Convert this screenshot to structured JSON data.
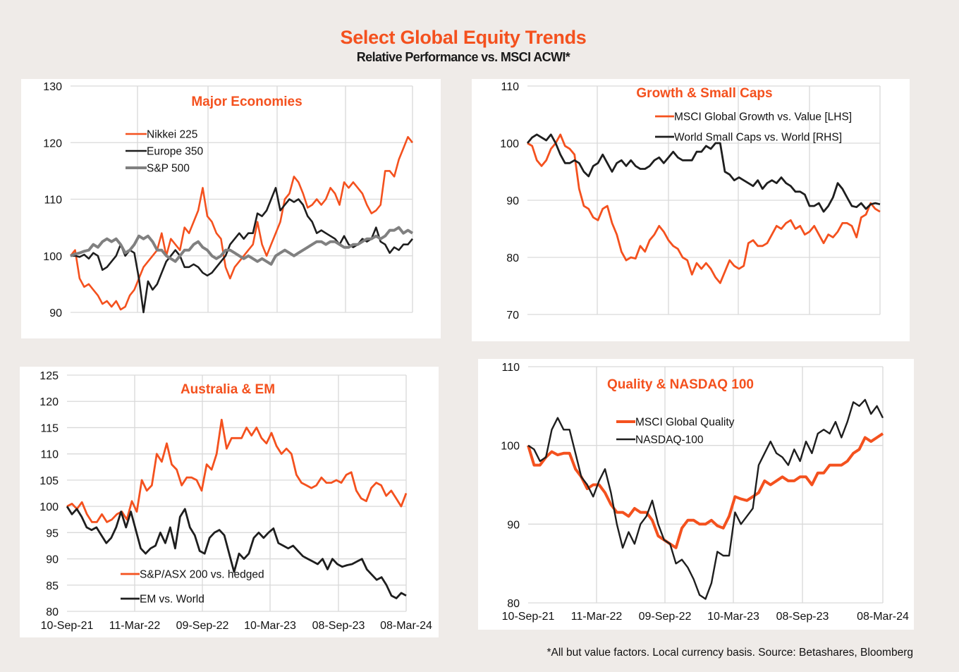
{
  "header": {
    "title": "Select Global Equity Trends",
    "subtitle": "Relative Performance vs. MSCI ACWI*"
  },
  "footnote": "*All but value factors. Local currency basis.  Source: Betashares, Bloomberg",
  "colors": {
    "orange": "#f4511e",
    "black": "#1e1e1e",
    "grey": "#808080",
    "grid": "#d9d9d9"
  },
  "chart_data": [
    {
      "id": "major",
      "type": "line",
      "title": "Major Economies",
      "xlabel": "",
      "ylabel": "",
      "x_range": [
        "10-Sep-21",
        "08-Mar-24"
      ],
      "x_ticks": [],
      "ylim": [
        90,
        130
      ],
      "y_ticks": [
        90,
        100,
        110,
        120,
        130
      ],
      "grid": true,
      "legend": "upper-left",
      "series": [
        {
          "name": "Nikkei 225",
          "color": "#f4511e",
          "values": [
            100,
            101,
            96,
            94.5,
            95,
            94,
            93,
            91.5,
            92,
            91,
            92,
            90.5,
            91,
            93,
            94,
            96,
            98,
            99,
            100,
            101,
            104,
            100,
            103,
            102,
            101,
            105,
            104,
            106,
            108,
            112,
            107,
            106,
            104,
            103,
            98,
            96,
            98,
            99,
            100,
            101,
            102,
            106,
            102,
            100,
            102,
            104,
            106,
            110,
            111,
            114,
            113,
            111,
            108.5,
            109,
            110,
            109,
            110,
            112,
            111,
            109,
            113,
            112,
            113,
            112,
            111,
            109,
            107.5,
            108,
            109,
            115,
            115,
            114,
            117,
            119,
            121,
            120
          ]
        },
        {
          "name": "Europe 350",
          "color": "#1e1e1e",
          "values": [
            100,
            100,
            99.8,
            100.2,
            99.5,
            100.5,
            100,
            97.5,
            98,
            99,
            100,
            102,
            100,
            101,
            100.5,
            96,
            90,
            95.5,
            94,
            95,
            97,
            99,
            100,
            101,
            100,
            98,
            98,
            98.5,
            98,
            97,
            96.5,
            97,
            98,
            99,
            100,
            102,
            103,
            104,
            103,
            104,
            104,
            107.5,
            107,
            108,
            110,
            112,
            108,
            109,
            110,
            109.5,
            110,
            109,
            107,
            106,
            104,
            104.5,
            104,
            103.5,
            103,
            102,
            103.5,
            102,
            101.5,
            102,
            103,
            102.5,
            103,
            105,
            102.5,
            102,
            100.5,
            101.5,
            101,
            102,
            102,
            103
          ]
        },
        {
          "name": "S&P 500",
          "color": "#808080",
          "values": [
            100,
            100.3,
            100.5,
            100.8,
            101,
            102,
            101.5,
            102.5,
            103,
            102.5,
            103,
            102,
            100.5,
            101,
            102,
            103.5,
            103,
            103.5,
            102.5,
            101,
            101,
            100,
            99.5,
            99,
            100,
            101,
            101,
            102,
            102.5,
            101.5,
            101,
            100,
            99.5,
            100,
            101,
            101,
            100.5,
            100,
            99.5,
            100,
            99.5,
            99,
            99.5,
            99,
            98.5,
            100,
            100.5,
            101,
            100.5,
            100,
            100.5,
            101,
            101.5,
            102,
            102.5,
            102.5,
            102,
            102.5,
            102.5,
            102,
            101.5,
            101.5,
            102,
            102,
            102.5,
            103,
            103,
            103.5,
            103,
            103.5,
            104.5,
            104.5,
            105,
            104,
            104.5,
            104
          ]
        }
      ]
    },
    {
      "id": "growth",
      "type": "line",
      "title": "Growth & Small Caps",
      "xlabel": "",
      "ylabel": "",
      "x_range": [
        "10-Sep-21",
        "08-Mar-24"
      ],
      "x_ticks": [],
      "ylim": [
        70,
        110
      ],
      "y_ticks": [
        70,
        80,
        90,
        100,
        110
      ],
      "grid": true,
      "legend": "upper-right",
      "series": [
        {
          "name": "MSCI Global Growth vs. Value [LHS]",
          "color": "#f4511e",
          "values": [
            100,
            99.5,
            97,
            96,
            97,
            99,
            100,
            101.5,
            99.5,
            99,
            98,
            92,
            89,
            88.5,
            87,
            86.5,
            88.5,
            89,
            86,
            84,
            81,
            79.5,
            80,
            79.8,
            82,
            81,
            83,
            84,
            85.5,
            84.5,
            83,
            82,
            81.5,
            80,
            79.5,
            77,
            79,
            78,
            79,
            78,
            76.5,
            75.5,
            77.5,
            79.5,
            78.5,
            78,
            78.5,
            82.5,
            83,
            82,
            82,
            82.5,
            84,
            85.5,
            85,
            86,
            86.5,
            85,
            85.5,
            84,
            84.5,
            85.5,
            84,
            82.5,
            84,
            83.5,
            84.5,
            86,
            86,
            85.5,
            83.5,
            87,
            87.5,
            89.5,
            88.5,
            88
          ]
        },
        {
          "name": "World Small Caps vs. World [RHS]",
          "color": "#1e1e1e",
          "values": [
            100,
            101,
            101.5,
            101,
            100.5,
            101.5,
            100,
            98,
            96.5,
            96.5,
            97,
            96.5,
            95,
            94.2,
            96,
            96.5,
            98,
            96.5,
            95,
            96.5,
            97,
            96,
            97,
            96,
            95.5,
            95.5,
            96,
            97,
            97.5,
            96.5,
            97.5,
            98.5,
            97.5,
            97,
            97,
            97,
            98.5,
            98.5,
            99.5,
            99,
            100,
            100,
            95,
            94.5,
            93.5,
            94,
            93.5,
            93,
            92.5,
            93.5,
            92,
            93,
            93.5,
            93,
            94,
            93,
            92.5,
            91.5,
            91.5,
            91,
            89,
            89,
            89.5,
            88,
            89,
            90.5,
            93,
            92,
            90.5,
            89,
            88.8,
            89.5,
            88.5,
            89.3,
            89.5,
            89.3
          ]
        }
      ]
    },
    {
      "id": "aus",
      "type": "line",
      "title": "Australia & EM",
      "xlabel": "",
      "ylabel": "",
      "x_ticks": [
        "10-Sep-21",
        "11-Mar-22",
        "09-Sep-22",
        "10-Mar-23",
        "08-Sep-23",
        "08-Mar-24"
      ],
      "ylim": [
        80,
        125
      ],
      "y_ticks": [
        80,
        85,
        90,
        95,
        100,
        105,
        110,
        115,
        120,
        125
      ],
      "grid": true,
      "legend": "lower-left",
      "series": [
        {
          "name": "S&P/ASX 200 vs. hedged",
          "color": "#f4511e",
          "values": [
            100,
            100.5,
            99.5,
            100.8,
            98.5,
            97,
            97,
            98.5,
            97,
            97.5,
            98.5,
            99,
            97.5,
            101,
            99,
            105,
            103,
            104,
            110,
            108.5,
            112,
            108,
            107,
            104,
            105.5,
            105.5,
            105,
            103,
            108,
            107,
            110,
            116.5,
            111,
            113,
            113,
            113,
            115,
            113.5,
            115,
            113,
            112,
            114,
            111.5,
            110,
            111,
            110,
            106,
            104.5,
            104,
            103.5,
            104,
            105.5,
            104.5,
            104.5,
            105,
            104.5,
            106,
            106.5,
            103,
            101.5,
            101,
            103.5,
            104.5,
            104,
            102,
            103,
            101.5,
            100,
            102.5
          ]
        },
        {
          "name": "EM vs. World",
          "color": "#1e1e1e",
          "values": [
            100,
            98.5,
            99.5,
            98,
            96,
            95.5,
            96,
            94.5,
            93,
            94,
            96,
            99,
            96,
            99,
            95.5,
            92,
            91,
            92,
            92.5,
            95,
            93,
            96,
            92,
            98,
            99.5,
            96,
            94.5,
            91.5,
            91,
            94,
            95,
            95.5,
            94.5,
            91,
            87.5,
            91,
            90,
            91,
            94,
            95,
            94,
            95,
            95.8,
            93,
            92.5,
            92,
            92.5,
            91.5,
            90.5,
            90,
            89.5,
            89,
            90,
            88,
            90,
            89,
            88.5,
            88.8,
            89,
            89.5,
            90,
            88,
            87,
            86,
            86.5,
            85,
            83,
            82.5,
            83.5,
            83
          ]
        }
      ]
    },
    {
      "id": "quality",
      "type": "line",
      "title": "Quality & NASDAQ 100",
      "xlabel": "",
      "ylabel": "",
      "x_ticks": [
        "10-Sep-21",
        "11-Mar-22",
        "09-Sep-22",
        "10-Mar-23",
        "08-Sep-23",
        "08-Mar-24"
      ],
      "ylim": [
        80,
        110
      ],
      "y_ticks": [
        80,
        90,
        100,
        110
      ],
      "grid": true,
      "legend": "upper-left",
      "series": [
        {
          "name": "MSCI Global Quality",
          "color": "#f4511e",
          "values": [
            100,
            97.5,
            97.5,
            98.5,
            99.2,
            98.8,
            99,
            99,
            97,
            96,
            94.5,
            95,
            95,
            94,
            92.5,
            91.5,
            91.5,
            91,
            92,
            91.5,
            91.5,
            90.5,
            88.5,
            88,
            87.5,
            87,
            89.5,
            90.5,
            90.5,
            90,
            90,
            90.5,
            89.8,
            89.5,
            91,
            93.5,
            93.2,
            93,
            93.5,
            94,
            95.5,
            95,
            95.5,
            96,
            95.5,
            95.5,
            96,
            96,
            95,
            96.5,
            96.5,
            97.5,
            97.5,
            97.5,
            98,
            99,
            99.5,
            101,
            100.5,
            101,
            101.5
          ]
        },
        {
          "name": "NASDAQ-100",
          "color": "#1e1e1e",
          "values": [
            100,
            99.5,
            98,
            98.5,
            102,
            103.5,
            102,
            102,
            99,
            96,
            95,
            93.5,
            95.5,
            97,
            94,
            90,
            87,
            89,
            87.5,
            90,
            91,
            93,
            90,
            88,
            87.5,
            85,
            85.5,
            84.5,
            83,
            81,
            80.5,
            82.5,
            86.5,
            86,
            86,
            91.5,
            90,
            91,
            92,
            97.5,
            99,
            100.5,
            99,
            98.5,
            97.5,
            99.5,
            98,
            100.5,
            99,
            101.5,
            102,
            101.5,
            103,
            101,
            103,
            105.5,
            105,
            105.8,
            104,
            105,
            103.5
          ]
        }
      ]
    }
  ]
}
